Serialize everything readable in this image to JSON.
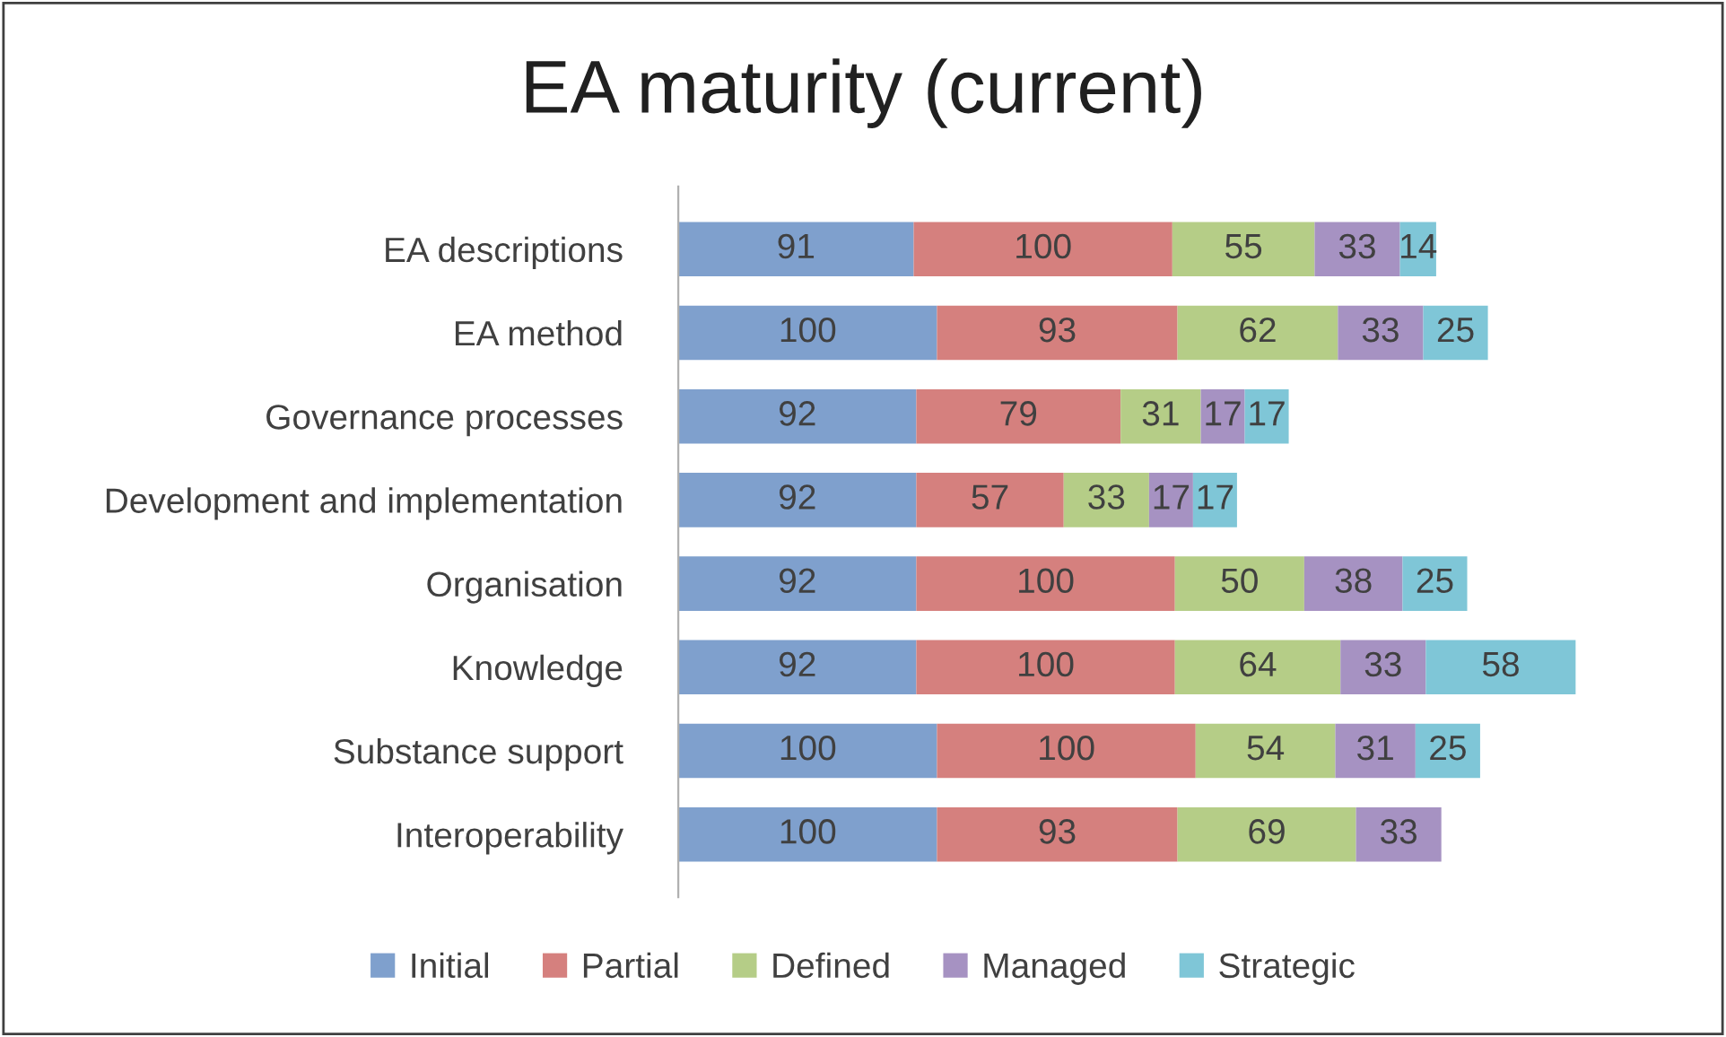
{
  "chart_data": {
    "type": "bar",
    "title": "EA maturity (current)",
    "orientation": "horizontal",
    "stacked": true,
    "data_labels": true,
    "legend": "bottom",
    "grid": false,
    "categories": [
      "EA descriptions",
      "EA method",
      "Governance processes",
      "Development and implementation",
      "Organisation",
      "Knowledge",
      "Substance support",
      "Interoperability"
    ],
    "series": [
      {
        "name": "Initial",
        "color": "#7fa0cd",
        "values": [
          91,
          100,
          92,
          92,
          92,
          92,
          100,
          100
        ]
      },
      {
        "name": "Partial",
        "color": "#d5807e",
        "values": [
          100,
          93,
          79,
          57,
          100,
          100,
          100,
          93
        ]
      },
      {
        "name": "Defined",
        "color": "#b5cd87",
        "values": [
          55,
          62,
          31,
          33,
          50,
          64,
          54,
          69
        ]
      },
      {
        "name": "Managed",
        "color": "#a692c2",
        "values": [
          33,
          33,
          17,
          17,
          38,
          33,
          31,
          33
        ]
      },
      {
        "name": "Strategic",
        "color": "#7fc6d7",
        "values": [
          14,
          25,
          17,
          17,
          25,
          58,
          25,
          null
        ]
      }
    ]
  }
}
